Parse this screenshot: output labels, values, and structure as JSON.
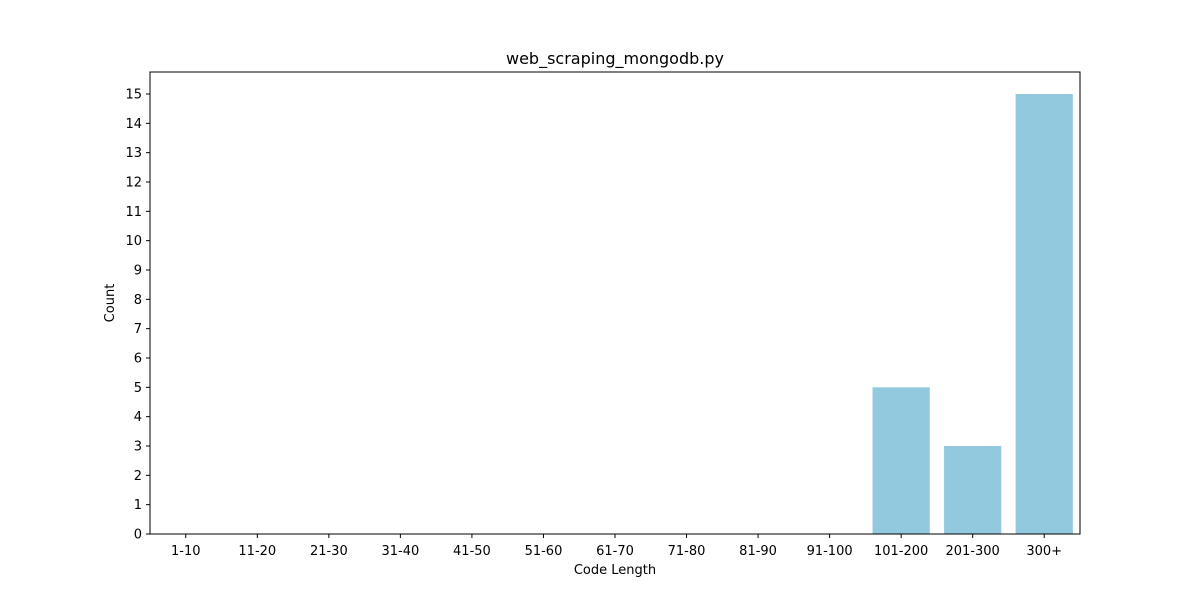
{
  "chart_data": {
    "type": "bar",
    "title": "web_scraping_mongodb.py",
    "xlabel": "Code Length",
    "ylabel": "Count",
    "categories": [
      "1-10",
      "11-20",
      "21-30",
      "31-40",
      "41-50",
      "51-60",
      "61-70",
      "71-80",
      "81-90",
      "91-100",
      "101-200",
      "201-300",
      "300+"
    ],
    "values": [
      0,
      0,
      0,
      0,
      0,
      0,
      0,
      0,
      0,
      0,
      5,
      3,
      15
    ],
    "ylim": [
      0,
      15.75
    ],
    "yticks": [
      0,
      1,
      2,
      3,
      4,
      5,
      6,
      7,
      8,
      9,
      10,
      11,
      12,
      13,
      14,
      15
    ],
    "grid": false,
    "bar_color": "#92c9de"
  }
}
